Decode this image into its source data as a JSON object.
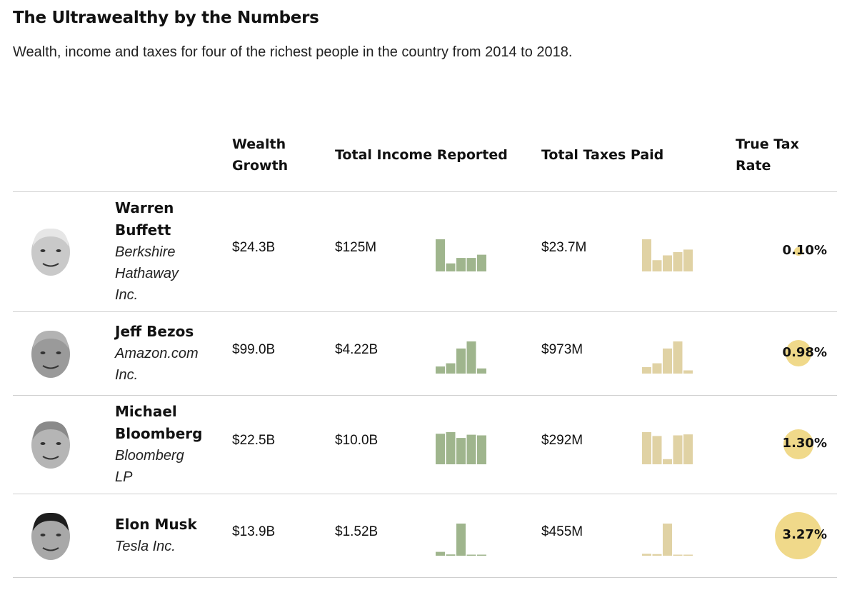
{
  "title": "The Ultrawealthy by the Numbers",
  "subtitle": "Wealth, income and taxes for four of the richest people in the country from 2014 to 2018.",
  "headers": {
    "wealth_growth": "Wealth Growth",
    "income": "Total Income Reported",
    "taxes": "Total Taxes Paid",
    "tax_rate": "True Tax Rate"
  },
  "colors": {
    "income_bars": "#9fb58d",
    "tax_bars": "#e0d2a4",
    "rate_circle": "#f0d98a",
    "rule": "#cfcfcf"
  },
  "chart_data": {
    "type": "table",
    "columns": [
      "Wealth Growth",
      "Total Income Reported",
      "Total Taxes Paid",
      "True Tax Rate"
    ],
    "rows": [
      {
        "name_lines": [
          "Warren",
          "Buffett"
        ],
        "company_lines": [
          "Berkshire",
          "Hathaway",
          "Inc."
        ],
        "wealth_growth": "$24.3B",
        "income": "$125M",
        "taxes": "$23.7M",
        "tax_rate": "0.10%",
        "tax_rate_value": 0.1,
        "income_bars": [
          1.0,
          0.25,
          0.42,
          0.42,
          0.52
        ],
        "tax_bars": [
          1.0,
          0.35,
          0.5,
          0.6,
          0.68
        ]
      },
      {
        "name_lines": [
          "Jeff Bezos"
        ],
        "company_lines": [
          "Amazon.com",
          "Inc."
        ],
        "wealth_growth": "$99.0B",
        "income": "$4.22B",
        "taxes": "$973M",
        "tax_rate": "0.98%",
        "tax_rate_value": 0.98,
        "income_bars": [
          0.22,
          0.32,
          0.78,
          1.0,
          0.16
        ],
        "tax_bars": [
          0.2,
          0.32,
          0.78,
          1.0,
          0.1
        ]
      },
      {
        "name_lines": [
          "Michael",
          "Bloomberg"
        ],
        "company_lines": [
          "Bloomberg",
          "LP"
        ],
        "wealth_growth": "$22.5B",
        "income": "$10.0B",
        "taxes": "$292M",
        "tax_rate": "1.30%",
        "tax_rate_value": 1.3,
        "income_bars": [
          0.95,
          1.0,
          0.82,
          0.92,
          0.9
        ],
        "tax_bars": [
          1.0,
          0.88,
          0.16,
          0.9,
          0.93
        ]
      },
      {
        "name_lines": [
          "Elon Musk"
        ],
        "company_lines": [
          "Tesla Inc."
        ],
        "wealth_growth": "$13.9B",
        "income": "$1.52B",
        "taxes": "$455M",
        "tax_rate": "3.27%",
        "tax_rate_value": 3.27,
        "income_bars": [
          0.12,
          0.04,
          1.0,
          0.03,
          0.03
        ],
        "tax_bars": [
          0.06,
          0.05,
          1.0,
          0.03,
          0.03
        ]
      }
    ]
  }
}
